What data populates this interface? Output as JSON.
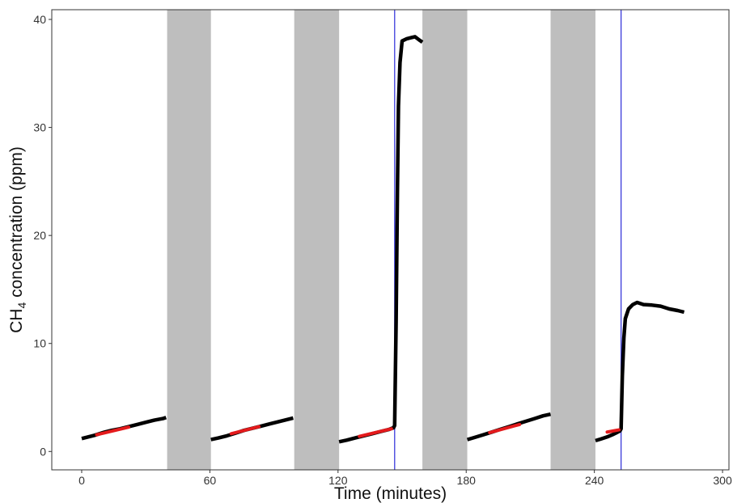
{
  "chart_data": {
    "type": "line",
    "title": "",
    "xlabel": "Time (minutes)",
    "ylabel_main": "CH",
    "ylabel_sub": "4",
    "ylabel_rest": " concentration (ppm)",
    "xlim": [
      -14,
      303
    ],
    "ylim": [
      -1.7,
      40.9
    ],
    "x_ticks": [
      {
        "value": 0,
        "label": "0"
      },
      {
        "value": 60,
        "label": "60"
      },
      {
        "value": 120,
        "label": "120"
      },
      {
        "value": 180,
        "label": "180"
      },
      {
        "value": 240,
        "label": "240"
      },
      {
        "value": 300,
        "label": "300"
      }
    ],
    "y_ticks": [
      {
        "value": 0,
        "label": "0"
      },
      {
        "value": 10,
        "label": "10"
      },
      {
        "value": 20,
        "label": "20"
      },
      {
        "value": 30,
        "label": "30"
      },
      {
        "value": 40,
        "label": "40"
      }
    ],
    "grid": false,
    "colors": {
      "series": "#000000",
      "fit": "#e41a1c",
      "shade": "#bebebe",
      "vline": "#3b3bdb"
    },
    "shaded_regions": [
      {
        "x0": 40,
        "x1": 60.5
      },
      {
        "x0": 99.5,
        "x1": 120.5
      },
      {
        "x0": 159.5,
        "x1": 180.5
      },
      {
        "x0": 219.5,
        "x1": 240.5
      }
    ],
    "vertical_lines": [
      146.5,
      252.5
    ],
    "series": [
      {
        "points": [
          [
            0,
            1.2
          ],
          [
            3,
            1.35
          ],
          [
            6,
            1.5
          ],
          [
            10,
            1.75
          ],
          [
            14,
            1.95
          ],
          [
            18,
            2.1
          ],
          [
            22,
            2.3
          ],
          [
            26,
            2.5
          ],
          [
            30,
            2.7
          ],
          [
            34,
            2.9
          ],
          [
            38,
            3.05
          ],
          [
            39.5,
            3.15
          ]
        ]
      },
      {
        "points": [
          [
            60.5,
            1.1
          ],
          [
            64,
            1.25
          ],
          [
            68,
            1.45
          ],
          [
            72,
            1.7
          ],
          [
            76,
            1.95
          ],
          [
            80,
            2.15
          ],
          [
            84,
            2.35
          ],
          [
            88,
            2.55
          ],
          [
            92,
            2.75
          ],
          [
            96,
            2.95
          ],
          [
            99,
            3.1
          ]
        ]
      },
      {
        "points": [
          [
            120.5,
            0.9
          ],
          [
            124,
            1.05
          ],
          [
            128,
            1.25
          ],
          [
            132,
            1.45
          ],
          [
            136,
            1.65
          ],
          [
            140,
            1.85
          ],
          [
            144,
            2.05
          ],
          [
            146,
            2.2
          ],
          [
            146.5,
            2.4
          ],
          [
            147.2,
            12
          ],
          [
            147.8,
            24
          ],
          [
            148.3,
            32
          ],
          [
            149,
            36
          ],
          [
            150,
            38
          ],
          [
            152,
            38.2
          ],
          [
            154,
            38.3
          ],
          [
            156,
            38.4
          ],
          [
            158,
            38.1
          ],
          [
            159.5,
            37.9
          ]
        ]
      },
      {
        "points": [
          [
            180.5,
            1.1
          ],
          [
            184,
            1.3
          ],
          [
            188,
            1.55
          ],
          [
            192,
            1.8
          ],
          [
            196,
            2.05
          ],
          [
            200,
            2.3
          ],
          [
            204,
            2.55
          ],
          [
            208,
            2.8
          ],
          [
            212,
            3.05
          ],
          [
            216,
            3.3
          ],
          [
            219.5,
            3.45
          ]
        ]
      },
      {
        "points": [
          [
            240.5,
            1.0
          ],
          [
            243,
            1.15
          ],
          [
            246,
            1.35
          ],
          [
            249,
            1.6
          ],
          [
            252,
            1.9
          ],
          [
            252.5,
            2.1
          ],
          [
            253.1,
            7
          ],
          [
            253.8,
            10.5
          ],
          [
            254.5,
            12.3
          ],
          [
            256,
            13.2
          ],
          [
            258,
            13.6
          ],
          [
            260,
            13.8
          ],
          [
            263,
            13.6
          ],
          [
            267,
            13.55
          ],
          [
            271,
            13.45
          ],
          [
            275,
            13.2
          ],
          [
            279,
            13.05
          ],
          [
            282,
            12.9
          ]
        ]
      }
    ],
    "fit_lines": [
      {
        "x": [
          7,
          22
        ],
        "y": [
          1.55,
          2.25
        ]
      },
      {
        "x": [
          70,
          83
        ],
        "y": [
          1.65,
          2.3
        ]
      },
      {
        "x": [
          130,
          145
        ],
        "y": [
          1.4,
          2.1
        ]
      },
      {
        "x": [
          191,
          205
        ],
        "y": [
          1.75,
          2.5
        ]
      },
      {
        "x": [
          246,
          251.5
        ],
        "y": [
          1.8,
          2.0
        ]
      }
    ]
  }
}
